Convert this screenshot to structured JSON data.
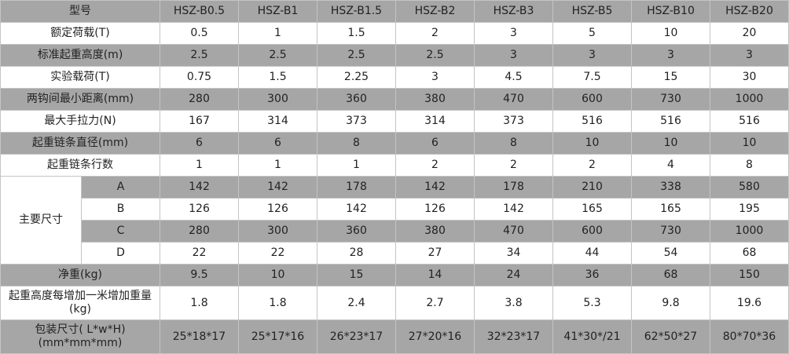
{
  "table": {
    "header": [
      "型号",
      "HSZ-B0.5",
      "HSZ-B1",
      "HSZ-B1.5",
      "HSZ-B2",
      "HSZ-B3",
      "HSZ-B5",
      "HSZ-B10",
      "HSZ-B20"
    ],
    "rows": [
      {
        "label": "额定荷载(T)",
        "values": [
          "0.5",
          "1",
          "1.5",
          "2",
          "3",
          "5",
          "10",
          "20"
        ]
      },
      {
        "label": "标准起重高度(m)",
        "values": [
          "2.5",
          "2.5",
          "2.5",
          "2.5",
          "3",
          "3",
          "3",
          "3"
        ]
      },
      {
        "label": "实验载荷(T)",
        "values": [
          "0.75",
          "1.5",
          "2.25",
          "3",
          "4.5",
          "7.5",
          "15",
          "30"
        ]
      },
      {
        "label": "两钩间最小距离(mm)",
        "values": [
          "280",
          "300",
          "360",
          "380",
          "470",
          "600",
          "730",
          "1000"
        ]
      },
      {
        "label": "最大手拉力(N)",
        "values": [
          "167",
          "314",
          "373",
          "314",
          "373",
          "516",
          "516",
          "516"
        ]
      },
      {
        "label": "起重链条直径(mm)",
        "values": [
          "6",
          "6",
          "8",
          "6",
          "8",
          "10",
          "10",
          "10"
        ]
      },
      {
        "label": "起重链条行数",
        "values": [
          "1",
          "1",
          "1",
          "2",
          "2",
          "2",
          "4",
          "8"
        ]
      }
    ],
    "dimensions": {
      "label": "主要尺寸",
      "rows": [
        {
          "label": "A",
          "values": [
            "142",
            "142",
            "178",
            "142",
            "178",
            "210",
            "338",
            "580"
          ]
        },
        {
          "label": "B",
          "values": [
            "126",
            "126",
            "142",
            "126",
            "142",
            "165",
            "165",
            "195"
          ]
        },
        {
          "label": "C",
          "values": [
            "280",
            "300",
            "360",
            "380",
            "470",
            "600",
            "730",
            "1000"
          ]
        },
        {
          "label": "D",
          "values": [
            "22",
            "22",
            "28",
            "27",
            "34",
            "44",
            "54",
            "68"
          ]
        }
      ]
    },
    "rows_after": [
      {
        "label": "净重(kg)",
        "values": [
          "9.5",
          "10",
          "15",
          "14",
          "24",
          "36",
          "68",
          "150"
        ]
      },
      {
        "label": "起重高度每增加一米增加重量(kg)",
        "values": [
          "1.8",
          "1.8",
          "2.4",
          "2.7",
          "3.8",
          "5.3",
          "9.8",
          "19.6"
        ]
      },
      {
        "label": "包装尺寸( L*w*H)(mm*mm*mm)",
        "values": [
          "25*18*17",
          "25*17*16",
          "26*23*17",
          "27*20*16",
          "32*23*17",
          "41*30*/21",
          "62*50*27",
          "80*70*36"
        ]
      }
    ]
  }
}
